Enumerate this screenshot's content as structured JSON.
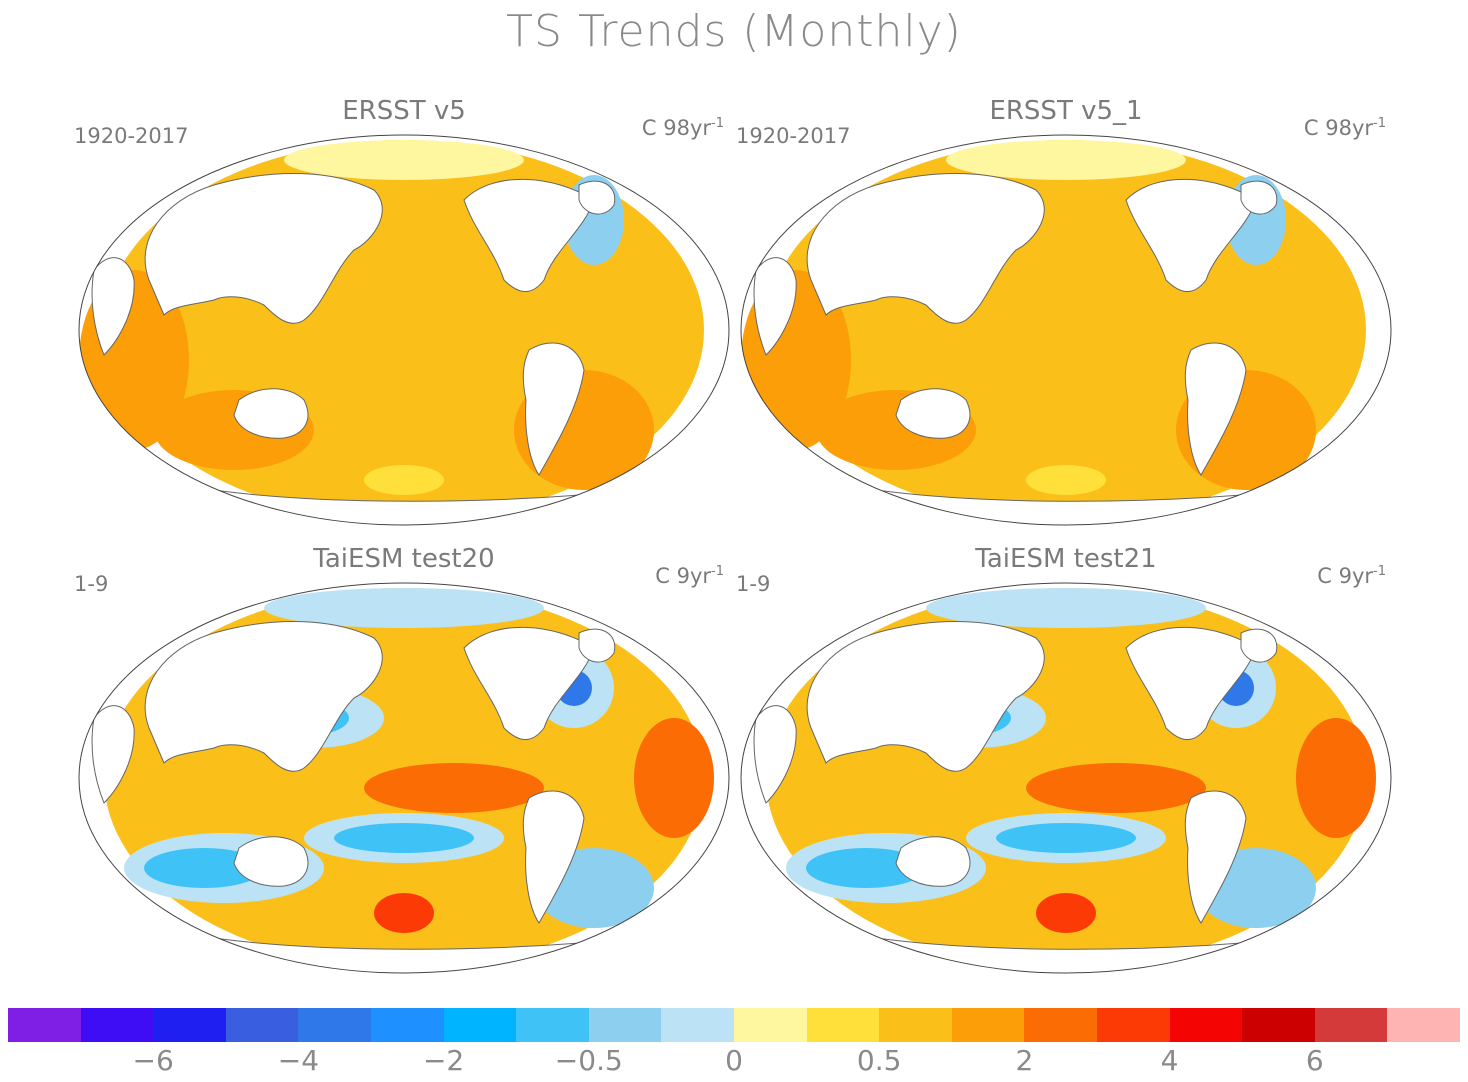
{
  "title": "TS Trends (Monthly)",
  "panels": [
    {
      "title": "ERSST v5",
      "period": "1920-2017",
      "units": "C 98yr",
      "units_exp": "-1",
      "pattern": "obs"
    },
    {
      "title": "ERSST v5_1",
      "period": "1920-2017",
      "units": "C 98yr",
      "units_exp": "-1",
      "pattern": "obs"
    },
    {
      "title": "TaiESM test20",
      "period": "1-9",
      "units": "C 9yr",
      "units_exp": "-1",
      "pattern": "model"
    },
    {
      "title": "TaiESM test21",
      "period": "1-9",
      "units": "C 9yr",
      "units_exp": "-1",
      "pattern": "model"
    }
  ],
  "colorbar": {
    "colors": [
      "#7f1fe6",
      "#3f0df5",
      "#1f1ff2",
      "#3a5ee0",
      "#2e78ea",
      "#1e90ff",
      "#00b4ff",
      "#3fc3f7",
      "#8dcfee",
      "#bce3f5",
      "#fff6a0",
      "#ffe03a",
      "#fbbf1a",
      "#fb9e08",
      "#fb6c05",
      "#fb3a05",
      "#f50404",
      "#cc0000",
      "#d43a3a",
      "#ffb4b4"
    ],
    "ticks": [
      {
        "label": "−6",
        "index": 2
      },
      {
        "label": "−4",
        "index": 4
      },
      {
        "label": "−2",
        "index": 6
      },
      {
        "label": "−0.5",
        "index": 8
      },
      {
        "label": "0",
        "index": 10
      },
      {
        "label": "0.5",
        "index": 12
      },
      {
        "label": "2",
        "index": 14
      },
      {
        "label": "4",
        "index": 16
      },
      {
        "label": "6",
        "index": 18
      }
    ]
  }
}
